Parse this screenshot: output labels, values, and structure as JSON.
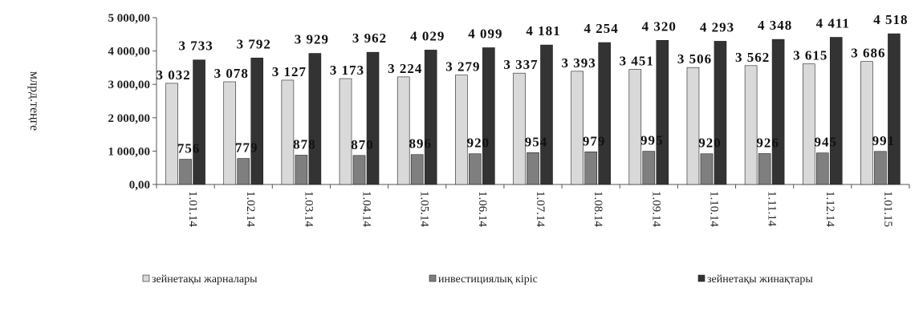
{
  "chart_data": {
    "type": "bar",
    "title": "",
    "xlabel": "",
    "ylabel": "млрд.теңге",
    "ylim": [
      0,
      5000
    ],
    "yticks": [
      "0,00",
      "1 000,00",
      "2 000,00",
      "3 000,00",
      "4 000,00",
      "5 000,00"
    ],
    "categories": [
      "1.01.14",
      "1.02.14",
      "1.03.14",
      "1.04.14",
      "1.05.14",
      "1.06.14",
      "1.07.14",
      "1.08.14",
      "1.09.14",
      "1.10.14",
      "1.11.14",
      "1.12.14",
      "1.01.15"
    ],
    "series": [
      {
        "name": "зейнетақы жарналары",
        "color": "#d9d9d9",
        "values": [
          3032,
          3078,
          3127,
          3173,
          3224,
          3279,
          3337,
          3393,
          3451,
          3506,
          3562,
          3615,
          3686
        ],
        "labels": [
          "3 032",
          "3 078",
          "3 127",
          "3 173",
          "3 224",
          "3 279",
          "3 337",
          "3 393",
          "3 451",
          "3 506",
          "3 562",
          "3 615",
          "3 686"
        ]
      },
      {
        "name": "инвестициялық кіріс",
        "color": "#7f7f7f",
        "values": [
          756,
          779,
          878,
          870,
          896,
          920,
          954,
          979,
          995,
          920,
          926,
          945,
          991
        ],
        "labels": [
          "756",
          "779",
          "878",
          "870",
          "896",
          "920",
          "954",
          "979",
          "995",
          "920",
          "926",
          "945",
          "991"
        ]
      },
      {
        "name": "зейнетақы жинақтары",
        "color": "#333333",
        "values": [
          3733,
          3792,
          3929,
          3962,
          4029,
          4099,
          4181,
          4254,
          4320,
          4293,
          4348,
          4411,
          4518
        ],
        "labels": [
          "3 733",
          "3 792",
          "3 929",
          "3 962",
          "4 029",
          "4 099",
          "4 181",
          "4 254",
          "4 320",
          "4 293",
          "4 348",
          "4 411",
          "4 518"
        ]
      }
    ],
    "grid": false,
    "legend_position": "bottom"
  }
}
